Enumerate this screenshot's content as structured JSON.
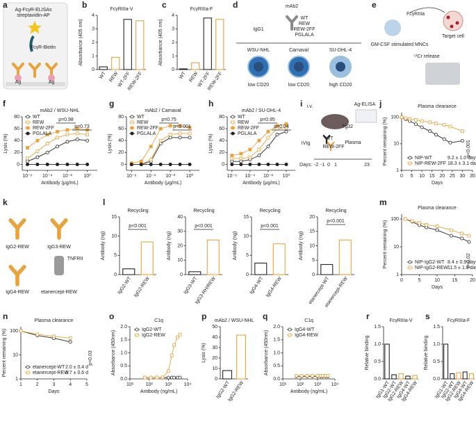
{
  "chart_data": [
    {
      "type": "bar",
      "panel": "b",
      "title": "FcγRIIIa-V",
      "y_label": "Absorbance (405 nm)",
      "categories": [
        "WT",
        "REW",
        "WT-2FF",
        "REW-2FF"
      ],
      "values": [
        0.2,
        0.9,
        3.7,
        3.6
      ],
      "colors": [
        "#222222",
        "#e8a33d",
        "#222222",
        "#e8a33d"
      ],
      "ylim": [
        0,
        4
      ],
      "yticks": [
        0,
        1,
        2,
        3,
        4
      ]
    },
    {
      "type": "bar",
      "panel": "c",
      "title": "FcγRIIIa-F",
      "y_label": "Absorbance (405 nm)",
      "categories": [
        "WT",
        "REW",
        "WT-2FF",
        "REW-2FF"
      ],
      "values": [
        0.05,
        0.5,
        3.8,
        3.7
      ],
      "colors": [
        "#222222",
        "#e8a33d",
        "#222222",
        "#e8a33d"
      ],
      "ylim": [
        0,
        4
      ],
      "yticks": [
        0,
        1,
        2,
        3,
        4
      ]
    },
    {
      "type": "line",
      "panel": "f",
      "title": "mAb2 / WSU-NHL",
      "x_label": "Antibody (μg/mL)",
      "y_label": "Lysis (%)",
      "xlog": true,
      "xlim": [
        3e-07,
        10
      ],
      "xticks": [
        {
          "value": 1e-06,
          "label": "10⁻⁶"
        },
        {
          "value": 0.0001,
          "label": "10⁻⁴"
        },
        {
          "value": 0.01,
          "label": "10⁻²"
        },
        {
          "value": 1,
          "label": "10⁰"
        }
      ],
      "ylim": [
        -10,
        80
      ],
      "yticks": [
        0,
        20,
        40,
        60,
        80
      ],
      "x": [
        1e-06,
        1e-05,
        0.0001,
        0.001,
        0.01,
        0.1,
        1
      ],
      "series": [
        {
          "name": "WT",
          "color": "#222222",
          "marker": "circle-open",
          "values": [
            5,
            12,
            20,
            30,
            38,
            42,
            40
          ]
        },
        {
          "name": "REW",
          "color": "#e8a33d",
          "marker": "square-open",
          "values": [
            10,
            22,
            35,
            45,
            50,
            52,
            50
          ]
        },
        {
          "name": "REW-2FF",
          "color": "#e8a33d",
          "marker": "square-filled",
          "values": [
            28,
            40,
            50,
            55,
            58,
            60,
            58
          ]
        },
        {
          "name": "PGLALA",
          "color": "#222222",
          "marker": "circle-filled",
          "values": [
            0,
            0,
            0,
            0,
            0,
            0,
            0
          ]
        }
      ],
      "annotations": [
        "p=0.98",
        "p=0.73"
      ]
    },
    {
      "type": "line",
      "panel": "g",
      "title": "mAb2 / Carnaval",
      "x_label": "Antibody (μg/mL)",
      "y_label": "Lysis (%)",
      "xlog": true,
      "xlim": [
        3e-07,
        10
      ],
      "xticks": [
        {
          "value": 1e-06,
          "label": "10⁻⁶"
        },
        {
          "value": 0.0001,
          "label": "10⁻⁴"
        },
        {
          "value": 0.01,
          "label": "10⁻²"
        },
        {
          "value": 1,
          "label": "10⁰"
        }
      ],
      "ylim": [
        -10,
        80
      ],
      "yticks": [
        0,
        20,
        40,
        60,
        80
      ],
      "x": [
        1e-06,
        1e-05,
        0.0001,
        0.001,
        0.01,
        0.1,
        1
      ],
      "series": [
        {
          "name": "WT",
          "color": "#222222",
          "marker": "circle-open",
          "values": [
            0,
            0,
            5,
            35,
            45,
            45,
            45
          ]
        },
        {
          "name": "REW",
          "color": "#e8a33d",
          "marker": "square-open",
          "values": [
            0,
            0,
            8,
            40,
            50,
            52,
            52
          ]
        },
        {
          "name": "REW-2FF",
          "color": "#e8a33d",
          "marker": "square-filled",
          "values": [
            2,
            5,
            30,
            60,
            65,
            65,
            62
          ]
        },
        {
          "name": "PGLALA",
          "color": "#222222",
          "marker": "circle-filled",
          "values": [
            0,
            0,
            0,
            0,
            0,
            0,
            0
          ]
        }
      ],
      "annotations": [
        "p=0.75",
        "p<0.001"
      ]
    },
    {
      "type": "line",
      "panel": "h",
      "title": "mAb2 / SU-DHL-4",
      "x_label": "Antibody (μg/mL)",
      "y_label": "Lysis (%)",
      "xlog": true,
      "xlim": [
        3e-07,
        10
      ],
      "xticks": [
        {
          "value": 1e-06,
          "label": "10⁻⁶"
        },
        {
          "value": 0.0001,
          "label": "10⁻⁴"
        },
        {
          "value": 0.01,
          "label": "10⁻²"
        },
        {
          "value": 1,
          "label": "10⁰"
        }
      ],
      "ylim": [
        -10,
        80
      ],
      "yticks": [
        0,
        20,
        40,
        60,
        80
      ],
      "x": [
        1e-06,
        1e-05,
        0.0001,
        0.001,
        0.01,
        0.1,
        1
      ],
      "series": [
        {
          "name": "WT",
          "color": "#222222",
          "marker": "circle-open",
          "values": [
            5,
            5,
            8,
            15,
            30,
            50,
            55
          ]
        },
        {
          "name": "REW",
          "color": "#e8a33d",
          "marker": "square-open",
          "values": [
            10,
            10,
            12,
            25,
            45,
            60,
            62
          ]
        },
        {
          "name": "REW-2FF",
          "color": "#e8a33d",
          "marker": "square-filled",
          "values": [
            15,
            18,
            25,
            40,
            55,
            65,
            68
          ]
        },
        {
          "name": "PGLALA",
          "color": "#222222",
          "marker": "circle-filled",
          "values": [
            0,
            0,
            0,
            0,
            0,
            0,
            0
          ]
        }
      ],
      "annotations": [
        "p=0.95",
        "p=0.04"
      ]
    },
    {
      "type": "line",
      "panel": "j",
      "title": "Plasma clearance",
      "x_label": "Days",
      "y_label": "Percent remaining (%)",
      "ylog": true,
      "xlim": [
        0,
        35
      ],
      "xticks": [
        0,
        5,
        10,
        15,
        20,
        25,
        30,
        35
      ],
      "ylim": [
        1,
        150
      ],
      "yticks": [
        1,
        10,
        100
      ],
      "x": [
        0,
        2,
        4,
        7,
        10,
        14,
        17,
        21,
        24,
        30
      ],
      "series": [
        {
          "name": "NIP-WT",
          "half_life": "9.2 ± 1.0 days",
          "color": "#222222",
          "marker": "circle-open",
          "values": [
            100,
            85,
            72,
            55,
            42,
            30,
            22,
            15,
            11,
            13
          ]
        },
        {
          "name": "NIP-REW-2FF",
          "half_life": "18.3 ± 3.1 days",
          "color": "#e8a33d",
          "marker": "square-open",
          "values": [
            100,
            93,
            88,
            80,
            72,
            65,
            58,
            52,
            45,
            30
          ]
        }
      ],
      "annotations": [
        "p<0.001"
      ]
    },
    {
      "type": "bar",
      "panel": "l",
      "title": "Recycling",
      "y_label": "Antibody (ng)",
      "categories": [
        "IgG2-WT",
        "IgG2-REW"
      ],
      "values": [
        1.5,
        8.5
      ],
      "colors": [
        "#222222",
        "#e8a33d"
      ],
      "ylim": [
        0,
        15
      ],
      "yticks": [
        0,
        5,
        10,
        15
      ],
      "annotations": [
        "p<0.001"
      ]
    },
    {
      "type": "bar",
      "title": "Recycling",
      "y_label": "Antibody (ng)",
      "categories": [
        "IgG3-WT",
        "IgG3-RH/REW"
      ],
      "values": [
        2,
        24
      ],
      "colors": [
        "#222222",
        "#e8a33d"
      ],
      "ylim": [
        0,
        40
      ],
      "yticks": [
        0,
        10,
        20,
        30,
        40
      ],
      "annotations": [
        "p<0.001"
      ]
    },
    {
      "type": "bar",
      "title": "Recycling",
      "y_label": "Antibody (ng)",
      "categories": [
        "IgG4-WT",
        "IgG4-REW"
      ],
      "values": [
        3,
        8
      ],
      "colors": [
        "#222222",
        "#e8a33d"
      ],
      "ylim": [
        0,
        15
      ],
      "yticks": [
        0,
        5,
        10,
        15
      ],
      "annotations": [
        "p<0.001"
      ]
    },
    {
      "type": "bar",
      "title": "Recycling",
      "y_label": "Antibody (ng)",
      "categories": [
        "etanercept-WT",
        "etanercept-REW"
      ],
      "values": [
        3.5,
        12
      ],
      "colors": [
        "#222222",
        "#e8a33d"
      ],
      "ylim": [
        0,
        20
      ],
      "yticks": [
        0,
        5,
        10,
        15,
        20
      ],
      "annotations": [
        "p<0.001"
      ]
    },
    {
      "type": "line",
      "panel": "m",
      "title": "Plasma clearance",
      "x_label": "Days",
      "y_label": "Percent remaining (%)",
      "ylog": true,
      "xlim": [
        0,
        20
      ],
      "xticks": [
        0,
        5,
        10,
        15,
        20
      ],
      "ylim": [
        1,
        150
      ],
      "yticks": [
        1,
        10,
        100
      ],
      "x": [
        1,
        3,
        5,
        7,
        10,
        14,
        17,
        19
      ],
      "series": [
        {
          "name": "NIP-IgG2-WT",
          "half_life": "8.4 ± 0.9 days",
          "color": "#222222",
          "marker": "circle-open",
          "values": [
            100,
            80,
            60,
            50,
            40,
            25,
            20,
            15
          ]
        },
        {
          "name": "NIP-IgG2-REW",
          "half_life": "11.5 ± 1.0 days",
          "color": "#e8a33d",
          "marker": "square-open",
          "values": [
            100,
            85,
            72,
            62,
            55,
            40,
            30,
            25
          ]
        }
      ],
      "annotations": [
        "p=0.02"
      ]
    },
    {
      "type": "line",
      "panel": "n",
      "title": "Plasma clearance",
      "x_label": "Days",
      "y_label": "Percent remaining (%)",
      "ylog": true,
      "xlim": [
        1,
        5
      ],
      "xticks": [
        1,
        2,
        3,
        4,
        5
      ],
      "ylim": [
        1,
        150
      ],
      "yticks": [
        1,
        10,
        100
      ],
      "x": [
        1,
        2,
        3,
        4
      ],
      "series": [
        {
          "name": "etanercept-WT",
          "half_life": "2.0 ± 0.4 d",
          "color": "#222222",
          "marker": "circle-open",
          "values": [
            100,
            65,
            50,
            35
          ]
        },
        {
          "name": "etanercept-REW",
          "half_life": "3.7 ± 0.6 d",
          "color": "#e8a33d",
          "marker": "square-open",
          "values": [
            100,
            72,
            60,
            50
          ]
        }
      ],
      "annotations": [
        "p=0.03"
      ]
    },
    {
      "type": "line",
      "panel": "o",
      "title": "C1q",
      "x_label": "Antibody (ng/mL)",
      "y_label": "Absorbance (450nm)",
      "xlog": true,
      "xlim": [
        10,
        10000
      ],
      "xticks": [
        {
          "value": 10,
          "label": "10¹"
        },
        {
          "value": 100,
          "label": "10²"
        },
        {
          "value": 1000,
          "label": "10³"
        },
        {
          "value": 10000,
          "label": "10⁴"
        }
      ],
      "ylim": [
        0,
        2
      ],
      "yticks": [
        {
          "value": 0,
          "label": "0.0"
        },
        0.5,
        {
          "value": 1,
          "label": "1.0"
        },
        1.5,
        {
          "value": 2,
          "label": "2.0"
        }
      ],
      "x": [
        60,
        120,
        250,
        500,
        1000,
        1500,
        2000,
        3000,
        4000
      ],
      "series": [
        {
          "name": "IgG2-WT",
          "color": "#222222",
          "marker": "circle-open",
          "values": [
            0.05,
            0.05,
            0.05,
            0.05,
            0.05,
            0.05,
            0.05,
            0.05,
            0.05
          ]
        },
        {
          "name": "IgG2-REW",
          "color": "#e8a33d",
          "marker": "square-open",
          "values": [
            0.05,
            0.05,
            0.05,
            0.06,
            0.3,
            0.9,
            1.3,
            1.6,
            1.7
          ]
        }
      ]
    },
    {
      "type": "bar",
      "panel": "p",
      "title": "mAb2 / WSU-NHL",
      "y_label": "Lysis (%)",
      "categories": [
        "IgG2-WT",
        "IgG2-REW"
      ],
      "values": [
        8,
        42
      ],
      "colors": [
        "#222222",
        "#e8a33d"
      ],
      "ylim": [
        0,
        50
      ],
      "yticks": [
        0,
        10,
        20,
        30,
        40,
        50
      ]
    },
    {
      "type": "line",
      "panel": "q",
      "title": "C1q",
      "x_label": "Antibody (ng/mL)",
      "y_label": "Absorbance (450nm)",
      "xlog": true,
      "xlim": [
        10,
        10000
      ],
      "xticks": [
        {
          "value": 10,
          "label": "10¹"
        },
        {
          "value": 100,
          "label": "10²"
        },
        {
          "value": 1000,
          "label": "10³"
        },
        {
          "value": 10000,
          "label": "10⁴"
        }
      ],
      "ylim": [
        0,
        2
      ],
      "yticks": [
        {
          "value": 0,
          "label": "0.0"
        },
        0.5,
        {
          "value": 1,
          "label": "1.0"
        },
        1.5,
        {
          "value": 2,
          "label": "2.0"
        }
      ],
      "x": [
        60,
        120,
        250,
        500,
        1000,
        1500,
        2000,
        3000,
        4000
      ],
      "series": [
        {
          "name": "IgG4-WT",
          "color": "#222222",
          "marker": "circle-open",
          "values": [
            0.1,
            0.1,
            0.1,
            0.1,
            0.1,
            0.1,
            0.1,
            0.1,
            0.1
          ]
        },
        {
          "name": "IgG4-REW",
          "color": "#e8a33d",
          "marker": "square-open",
          "values": [
            0.12,
            0.12,
            0.12,
            0.12,
            0.12,
            0.12,
            0.12,
            0.12,
            0.12
          ]
        }
      ]
    },
    {
      "type": "bar",
      "panel": "r",
      "title": "FcγRIIIa-V",
      "y_label": "Relative binding",
      "categories": [
        "IgG1-WT",
        "IgG2-WT",
        "IgG2-REW",
        "IgG4-WT",
        "IgG4-REW"
      ],
      "values": [
        1.0,
        0.12,
        0.15,
        0.08,
        0.1
      ],
      "colors": [
        "#222222",
        "#222222",
        "#e8a33d",
        "#222222",
        "#e8a33d"
      ],
      "ylim": [
        0,
        1.5
      ],
      "yticks": [
        {
          "value": 0,
          "label": "0.0"
        },
        0.5,
        {
          "value": 1,
          "label": "1.0"
        },
        1.5
      ]
    },
    {
      "type": "bar",
      "panel": "s",
      "title": "FcγRIIIa-F",
      "y_label": "Relative binding",
      "categories": [
        "IgG1-WT",
        "IgG2-WT",
        "IgG2-REW",
        "IgG4-WT",
        "IgG4-REW"
      ],
      "values": [
        1.0,
        0.15,
        0.18,
        0.2,
        0.15
      ],
      "colors": [
        "#222222",
        "#222222",
        "#e8a33d",
        "#222222",
        "#e8a33d"
      ],
      "ylim": [
        0,
        1.5
      ],
      "yticks": [
        {
          "value": 0,
          "label": "0.0"
        },
        0.5,
        {
          "value": 1,
          "label": "1.0"
        },
        1.5
      ]
    }
  ],
  "diagrams": [
    {
      "panel": "a",
      "labels": [
        "Ag-FcγR-ELISAs",
        "streptavidin-AP",
        "FcγR-Biotin",
        "Ag",
        "Ag"
      ]
    },
    {
      "panel": "d",
      "labels": [
        "mAb2",
        "IgG1",
        "WT",
        "REW",
        "REW-2FF",
        "PGLALA",
        "WSU-NHL",
        "Carnaval",
        "SU-DHL-4",
        "low CD20",
        "low CD20",
        "high CD20"
      ]
    },
    {
      "panel": "e",
      "labels": [
        "FcγRIIIa",
        "Target cell",
        "GM-CSF stimulated MNCs",
        "⁵¹Cr release"
      ]
    },
    {
      "panel": "i",
      "labels": [
        "i.v.",
        "Tg32",
        "Ag-ELISA",
        "WT",
        "REW-2FF",
        "Plasma",
        "IVIg",
        "Days:",
        "-2",
        "-1",
        "0",
        "1",
        "23"
      ]
    },
    {
      "panel": "k",
      "labels": [
        "IgG2-REW",
        "IgG3-REW",
        "IgG4-REW",
        "etanercept-REW",
        "TNFRII"
      ]
    }
  ]
}
